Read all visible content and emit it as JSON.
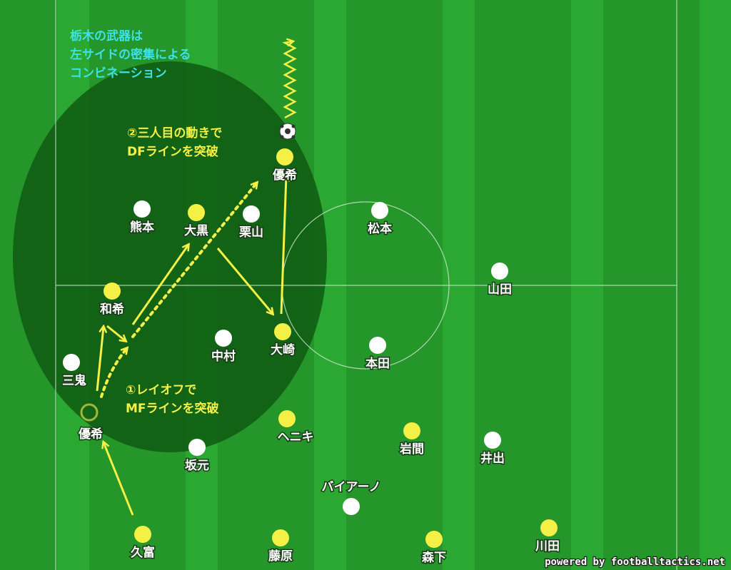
{
  "colors": {
    "pitch": "#24962a",
    "pitch_stripe": "#2ba832",
    "zone": "#0f5a12",
    "attacker": "#f5f046",
    "defender": "#ffffff",
    "note_cyan": "#3fe0e6",
    "note_yellow": "#f5f046",
    "arrow": "#f5f046"
  },
  "notes": {
    "headline": [
      "栃木の武器は",
      "左サイドの密集による",
      "コンビネーション"
    ],
    "step2": [
      "②三人目の動きで",
      "DFラインを突破"
    ],
    "step1": [
      "①レイオフで",
      "MFラインを突破"
    ]
  },
  "defenders": [
    {
      "name": "熊本"
    },
    {
      "name": "栗山"
    },
    {
      "name": "松本"
    },
    {
      "name": "山田"
    },
    {
      "name": "中村"
    },
    {
      "name": "本田"
    },
    {
      "name": "三鬼"
    },
    {
      "name": "坂元"
    },
    {
      "name": "井出"
    },
    {
      "name": "バイアーノ"
    }
  ],
  "attackers": [
    {
      "name": "優希"
    },
    {
      "name": "大黒"
    },
    {
      "name": "和希"
    },
    {
      "name": "大崎"
    },
    {
      "name": "ヘニキ"
    },
    {
      "name": "岩間"
    },
    {
      "name": "久富"
    },
    {
      "name": "藤原"
    },
    {
      "name": "森下"
    },
    {
      "name": "川田"
    }
  ],
  "ghost": {
    "name": "優希"
  },
  "ball_icon": "soccer-ball-icon",
  "credit": "powered by footballtactics.net"
}
